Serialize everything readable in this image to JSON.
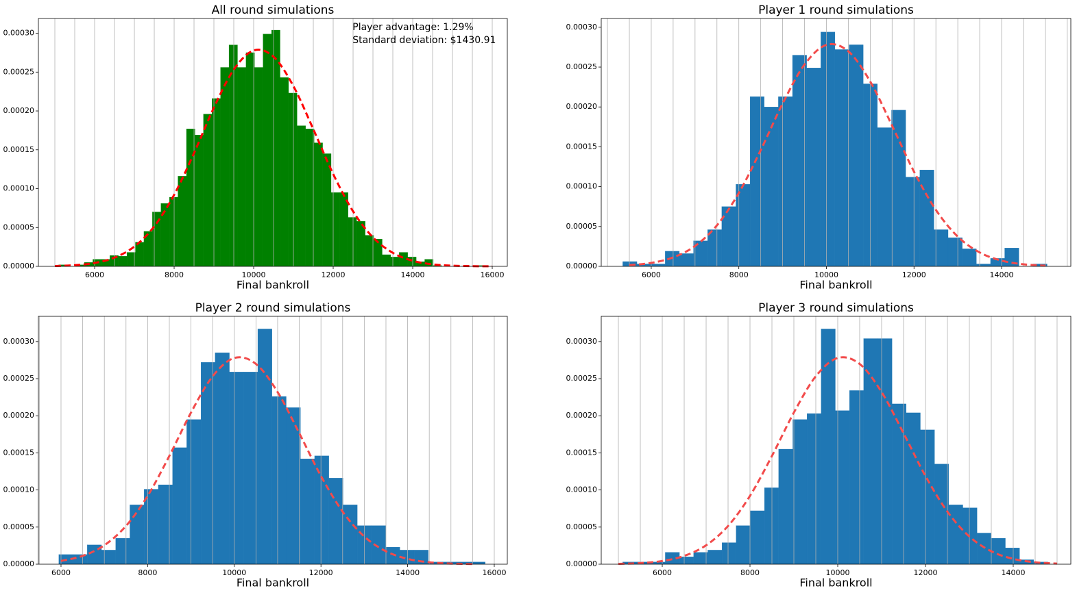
{
  "chart_data": [
    {
      "type": "histogram",
      "title": "All round simulations",
      "x_label": "Final bankroll",
      "color": "#008000",
      "annotations": [
        "Player advantage: 1.29%",
        "Standard deviation: $1430.91"
      ],
      "bins": [
        5100,
        5314,
        5528,
        5742,
        5956,
        6170,
        6384,
        6598,
        6812,
        7026,
        7240,
        7454,
        7668,
        7882,
        8096,
        8310,
        8524,
        8738,
        8952,
        9166,
        9380,
        9594,
        9808,
        10022,
        10236,
        10450,
        10664,
        10878,
        11092,
        11306,
        11520,
        11734,
        11948,
        12162,
        12376,
        12590,
        12804,
        13018,
        13232,
        13446,
        13660,
        13874,
        14088,
        14302,
        14516,
        14730,
        14944,
        15158,
        15372,
        15586,
        15800
      ],
      "values": [
        2e-06,
        0,
        2e-06,
        5e-06,
        9e-06,
        9e-06,
        1.4e-05,
        1.3e-05,
        1.8e-05,
        3.1e-05,
        4.5e-05,
        7e-05,
        8.1e-05,
        8.9e-05,
        0.000116,
        0.000177,
        0.000169,
        0.000196,
        0.000216,
        0.000256,
        0.000285,
        0.000256,
        0.000275,
        0.000256,
        0.000299,
        0.000304,
        0.000243,
        0.000223,
        0.000181,
        0.000177,
        0.000159,
        0.000145,
        9.5e-05,
        9.5e-05,
        6.3e-05,
        5.8e-05,
        4e-05,
        3.5e-05,
        1.5e-05,
        1.2e-05,
        1.8e-05,
        1.2e-05,
        6e-06,
        9e-06,
        1e-06,
        0,
        0,
        0,
        0,
        1e-06
      ],
      "curve": {
        "color": "#ff0000",
        "x": [
          5000,
          5500,
          6000,
          6500,
          7000,
          7500,
          8000,
          8500,
          9000,
          9500,
          10000,
          10500,
          11000,
          11500,
          12000,
          12500,
          13000,
          13500,
          14000,
          14500,
          15000,
          15500,
          16000
        ],
        "values": [
          4.5e-07,
          1.49e-06,
          4.34e-06,
          1.12e-05,
          2.55e-05,
          5.15e-05,
          9.21e-05,
          0.0001458,
          0.0002043,
          0.0002532,
          0.0002779,
          0.0002698,
          0.0002319,
          0.0001765,
          0.0001188,
          7.08e-05,
          3.73e-05,
          1.74e-05,
          7.2e-06,
          2.6e-06,
          8.5e-07,
          2.5e-07,
          6e-08
        ]
      },
      "xlim": [
        4586,
        16379
      ],
      "xticks": [
        6000,
        8000,
        10000,
        12000,
        14000,
        16000
      ],
      "x_minor_ticks": [
        5000,
        5500,
        6000,
        6500,
        7000,
        7500,
        8000,
        8500,
        9000,
        9500,
        10000,
        10500,
        11000,
        11500,
        12000,
        12500,
        13000,
        13500,
        14000,
        14500,
        15000,
        15500,
        16000
      ],
      "ylim": [
        0,
        0.000319
      ],
      "yticks": [
        {
          "value": 0,
          "label": "0.00000"
        },
        {
          "value": 5e-05,
          "label": "0.00005"
        },
        {
          "value": 0.0001,
          "label": "0.00010"
        },
        {
          "value": 0.00015,
          "label": "0.00015"
        },
        {
          "value": 0.0002,
          "label": "0.00020"
        },
        {
          "value": 0.00025,
          "label": "0.00025"
        },
        {
          "value": 0.0003,
          "label": "0.00030"
        }
      ],
      "grid": "x"
    },
    {
      "type": "histogram",
      "title": "Player 1 round simulations",
      "x_label": "Final bankroll",
      "color": "#1f77b4",
      "bins": [
        5350,
        5673,
        5996,
        6319,
        6642,
        6965,
        7288,
        7611,
        7934,
        8257,
        8580,
        8903,
        9226,
        9549,
        9872,
        10195,
        10518,
        10841,
        11164,
        11487,
        11810,
        12133,
        12456,
        12779,
        13102,
        13425,
        13748,
        14071,
        14394,
        14717,
        15040
      ],
      "values": [
        6e-06,
        3e-06,
        3e-06,
        1.9e-05,
        1.6e-05,
        3.2e-05,
        4.6e-05,
        7.5e-05,
        0.000103,
        0.000213,
        0.0002,
        0.000213,
        0.000265,
        0.000249,
        0.000294,
        0.000272,
        0.000278,
        0.000229,
        0.000174,
        0.000196,
        0.000112,
        0.000121,
        4.6e-05,
        3.6e-05,
        2.2e-05,
        3e-06,
        1e-05,
        2.3e-05,
        0,
        3e-06
      ],
      "curve": {
        "color": "#f24b4b",
        "x": [
          5500,
          6000,
          6500,
          7000,
          7500,
          8000,
          8500,
          9000,
          9500,
          10000,
          10500,
          11000,
          11500,
          12000,
          12500,
          13000,
          13500,
          14000,
          14500,
          15000
        ],
        "values": [
          1.49e-06,
          4.34e-06,
          1.12e-05,
          2.55e-05,
          5.15e-05,
          9.21e-05,
          0.0001458,
          0.0002043,
          0.0002532,
          0.0002779,
          0.0002698,
          0.0002319,
          0.0001765,
          0.0001188,
          7.08e-05,
          3.73e-05,
          1.74e-05,
          7.2e-06,
          2.6e-06,
          8.5e-07
        ]
      },
      "xlim": [
        4858,
        15581
      ],
      "xticks": [
        6000,
        8000,
        10000,
        12000,
        14000
      ],
      "x_minor_ticks": [
        5000,
        5500,
        6000,
        6500,
        7000,
        7500,
        8000,
        8500,
        9000,
        9500,
        10000,
        10500,
        11000,
        11500,
        12000,
        12500,
        13000,
        13500,
        14000,
        14500,
        15000,
        15500
      ],
      "ylim": [
        0,
        0.000311
      ],
      "yticks": [
        {
          "value": 0,
          "label": "0.00000"
        },
        {
          "value": 5e-05,
          "label": "0.00005"
        },
        {
          "value": 0.0001,
          "label": "0.00010"
        },
        {
          "value": 0.00015,
          "label": "0.00015"
        },
        {
          "value": 0.0002,
          "label": "0.00020"
        },
        {
          "value": 0.00025,
          "label": "0.00025"
        },
        {
          "value": 0.0003,
          "label": "0.00030"
        }
      ],
      "grid": "x"
    },
    {
      "type": "histogram",
      "title": "Player 2 round simulations",
      "x_label": "Final bankroll",
      "color": "#1f77b4",
      "bins": [
        5950,
        6278,
        6606,
        6934,
        7262,
        7590,
        7918,
        8246,
        8574,
        8902,
        9230,
        9558,
        9886,
        10214,
        10542,
        10870,
        11198,
        11526,
        11854,
        12182,
        12510,
        12838,
        13166,
        13494,
        13822,
        14150,
        14478,
        14806,
        15134,
        15462,
        15790
      ],
      "values": [
        1.3e-05,
        1.3e-05,
        2.6e-05,
        1.9e-05,
        3.5e-05,
        8e-05,
        0.000101,
        0.000107,
        0.000157,
        0.000195,
        0.000272,
        0.000285,
        0.000259,
        0.000259,
        0.000317,
        0.000226,
        0.000211,
        0.000142,
        0.000146,
        0.000116,
        8e-05,
        5.2e-05,
        5.2e-05,
        2.3e-05,
        1.9e-05,
        1.9e-05,
        3e-06,
        3e-06,
        3e-06,
        3e-06
      ],
      "curve": {
        "color": "#f24b4b",
        "x": [
          6000,
          6500,
          7000,
          7500,
          8000,
          8500,
          9000,
          9500,
          10000,
          10500,
          11000,
          11500,
          12000,
          12500,
          13000,
          13500,
          14000,
          14500,
          15000,
          15500
        ],
        "values": [
          4.34e-06,
          1.12e-05,
          2.55e-05,
          5.15e-05,
          9.21e-05,
          0.0001458,
          0.0002043,
          0.0002532,
          0.0002779,
          0.0002698,
          0.0002319,
          0.0001765,
          0.0001188,
          7.08e-05,
          3.73e-05,
          1.74e-05,
          7.2e-06,
          2.6e-06,
          8.5e-07,
          2.5e-07
        ]
      },
      "xlim": [
        5478,
        16301
      ],
      "xticks": [
        6000,
        8000,
        10000,
        12000,
        14000,
        16000
      ],
      "x_minor_ticks": [
        5500,
        6000,
        6500,
        7000,
        7500,
        8000,
        8500,
        9000,
        9500,
        10000,
        10500,
        11000,
        11500,
        12000,
        12500,
        13000,
        13500,
        14000,
        14500,
        15000,
        15500,
        16000
      ],
      "ylim": [
        0,
        0.000334
      ],
      "yticks": [
        {
          "value": 0,
          "label": "0.00000"
        },
        {
          "value": 5e-05,
          "label": "0.00005"
        },
        {
          "value": 0.0001,
          "label": "0.00010"
        },
        {
          "value": 0.00015,
          "label": "0.00015"
        },
        {
          "value": 0.0002,
          "label": "0.00020"
        },
        {
          "value": 0.00025,
          "label": "0.00025"
        },
        {
          "value": 0.0003,
          "label": "0.00030"
        }
      ],
      "grid": "x"
    },
    {
      "type": "histogram",
      "title": "Player 3 round simulations",
      "x_label": "Final bankroll",
      "color": "#1f77b4",
      "bins": [
        5100,
        5423,
        5746,
        6069,
        6392,
        6715,
        7038,
        7361,
        7684,
        8007,
        8330,
        8653,
        8976,
        9299,
        9622,
        9945,
        10268,
        10591,
        10914,
        11237,
        11560,
        11883,
        12206,
        12529,
        12852,
        13175,
        13498,
        13821,
        14144,
        14467,
        14790
      ],
      "values": [
        3e-06,
        3e-06,
        3e-06,
        1.6e-05,
        1e-05,
        1.6e-05,
        1.9e-05,
        2.9e-05,
        5.2e-05,
        7.2e-05,
        0.000103,
        0.000155,
        0.000195,
        0.000203,
        0.000317,
        0.000207,
        0.000234,
        0.000304,
        0.000304,
        0.000216,
        0.000204,
        0.000181,
        0.000135,
        8e-05,
        7.6e-05,
        4.2e-05,
        3.5e-05,
        2.2e-05,
        6e-06,
        3e-06
      ],
      "curve": {
        "color": "#f24b4b",
        "x": [
          5000,
          5500,
          6000,
          6500,
          7000,
          7500,
          8000,
          8500,
          9000,
          9500,
          10000,
          10500,
          11000,
          11500,
          12000,
          12500,
          13000,
          13500,
          14000,
          14500,
          15000
        ],
        "values": [
          4.5e-07,
          1.49e-06,
          4.34e-06,
          1.12e-05,
          2.55e-05,
          5.15e-05,
          9.21e-05,
          0.0001458,
          0.0002043,
          0.0002532,
          0.0002779,
          0.0002698,
          0.0002319,
          0.0001765,
          0.0001188,
          7.08e-05,
          3.73e-05,
          1.74e-05,
          7.2e-06,
          2.6e-06,
          8.5e-07
        ]
      },
      "xlim": [
        4609,
        15313
      ],
      "xticks": [
        6000,
        8000,
        10000,
        12000,
        14000
      ],
      "x_minor_ticks": [
        5000,
        5500,
        6000,
        6500,
        7000,
        7500,
        8000,
        8500,
        9000,
        9500,
        10000,
        10500,
        11000,
        11500,
        12000,
        12500,
        13000,
        13500,
        14000,
        14500,
        15000
      ],
      "ylim": [
        0,
        0.000334
      ],
      "yticks": [
        {
          "value": 0,
          "label": "0.00000"
        },
        {
          "value": 5e-05,
          "label": "0.00005"
        },
        {
          "value": 0.0001,
          "label": "0.00010"
        },
        {
          "value": 0.00015,
          "label": "0.00015"
        },
        {
          "value": 0.0002,
          "label": "0.00020"
        },
        {
          "value": 0.00025,
          "label": "0.00025"
        },
        {
          "value": 0.0003,
          "label": "0.00030"
        }
      ],
      "grid": "x"
    }
  ]
}
